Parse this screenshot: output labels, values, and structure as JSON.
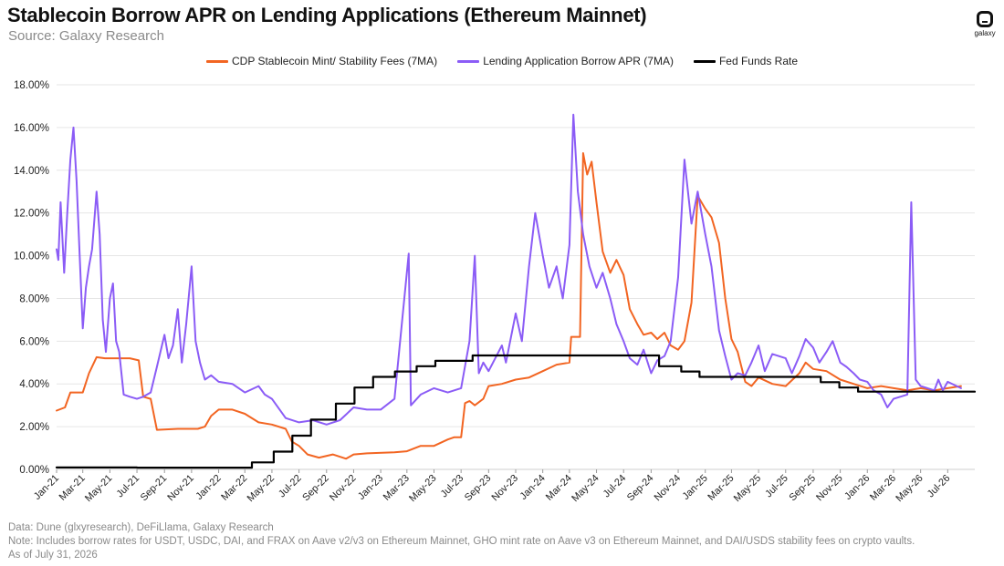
{
  "header": {
    "title": "Stablecoin Borrow APR on Lending Applications (Ethereum Mainnet)",
    "subtitle": "Source: Galaxy Research",
    "logo_text": "galaxy"
  },
  "footer": {
    "data_source": "Data: Dune (glxyresearch), DeFiLlama, Galaxy Research",
    "note": "Note: Includes borrow rates for USDT, USDC, DAI, and FRAX on Aave v2/v3 on Ethereum Mainnet, GHO mint rate on Aave v3 on Ethereum Mainnet, and DAI/USDS stability fees on crypto vaults.",
    "as_of": "As of July 31, 2026"
  },
  "colors": {
    "cdp": "#F26522",
    "lending": "#8B5CF6",
    "fed": "#000000",
    "grid": "#e6e6e6"
  },
  "chart_data": {
    "type": "line",
    "title": "Stablecoin Borrow APR on Lending Applications (Ethereum Mainnet)",
    "xlabel": "",
    "ylabel": "",
    "ylim": [
      0,
      18
    ],
    "ytick_values": [
      0,
      2,
      4,
      6,
      8,
      10,
      12,
      14,
      16,
      18
    ],
    "ytick_labels": [
      "0.00%",
      "2.00%",
      "4.00%",
      "6.00%",
      "8.00%",
      "10.00%",
      "12.00%",
      "14.00%",
      "16.00%",
      "18.00%"
    ],
    "x_start": "2021-01-01",
    "xlim": [
      "2021-01-01",
      "2026-08-31"
    ],
    "xtick_labels": [
      "Jan-21",
      "Mar-21",
      "May-21",
      "Jul-21",
      "Sep-21",
      "Nov-21",
      "Jan-22",
      "Mar-22",
      "May-22",
      "Jul-22",
      "Sep-22",
      "Nov-22",
      "Jan-23",
      "Mar-23",
      "May-23",
      "Jul-23",
      "Sep-23",
      "Nov-23",
      "Jan-24",
      "Mar-24",
      "May-24",
      "Jul-24",
      "Sep-24",
      "Nov-24",
      "Jan-25",
      "Mar-25",
      "May-25",
      "Jul-25",
      "Sep-25",
      "Nov-25",
      "Jan-26",
      "Mar-26",
      "May-26",
      "Jul-26"
    ],
    "grid": true,
    "legend_position": "top-center",
    "series": [
      {
        "name": "CDP Stablecoin Mint/ Stability Fees (7MA)",
        "color": "#F26522",
        "points": [
          [
            "2021-01-01",
            2.75
          ],
          [
            "2021-01-20",
            2.9
          ],
          [
            "2021-02-01",
            3.6
          ],
          [
            "2021-03-01",
            3.6
          ],
          [
            "2021-03-15",
            4.5
          ],
          [
            "2021-04-01",
            5.25
          ],
          [
            "2021-04-20",
            5.2
          ],
          [
            "2021-05-15",
            5.2
          ],
          [
            "2021-06-15",
            5.2
          ],
          [
            "2021-07-05",
            5.1
          ],
          [
            "2021-07-15",
            3.4
          ],
          [
            "2021-08-01",
            3.3
          ],
          [
            "2021-08-15",
            1.85
          ],
          [
            "2021-10-01",
            1.9
          ],
          [
            "2021-11-15",
            1.9
          ],
          [
            "2021-12-01",
            2.0
          ],
          [
            "2021-12-15",
            2.5
          ],
          [
            "2022-01-01",
            2.8
          ],
          [
            "2022-02-01",
            2.8
          ],
          [
            "2022-03-01",
            2.6
          ],
          [
            "2022-04-01",
            2.2
          ],
          [
            "2022-05-01",
            2.1
          ],
          [
            "2022-06-01",
            1.9
          ],
          [
            "2022-06-15",
            1.3
          ],
          [
            "2022-07-01",
            1.1
          ],
          [
            "2022-07-20",
            0.7
          ],
          [
            "2022-08-15",
            0.55
          ],
          [
            "2022-09-15",
            0.7
          ],
          [
            "2022-10-15",
            0.5
          ],
          [
            "2022-11-01",
            0.7
          ],
          [
            "2022-12-01",
            0.75
          ],
          [
            "2023-02-01",
            0.8
          ],
          [
            "2023-03-01",
            0.85
          ],
          [
            "2023-04-01",
            1.1
          ],
          [
            "2023-05-01",
            1.1
          ],
          [
            "2023-06-01",
            1.4
          ],
          [
            "2023-06-15",
            1.5
          ],
          [
            "2023-07-01",
            1.5
          ],
          [
            "2023-07-10",
            3.1
          ],
          [
            "2023-07-20",
            3.2
          ],
          [
            "2023-08-01",
            3.0
          ],
          [
            "2023-08-20",
            3.3
          ],
          [
            "2023-09-01",
            3.9
          ],
          [
            "2023-10-01",
            4.0
          ],
          [
            "2023-11-01",
            4.2
          ],
          [
            "2023-12-01",
            4.3
          ],
          [
            "2024-01-01",
            4.6
          ],
          [
            "2024-02-01",
            4.9
          ],
          [
            "2024-03-01",
            5.0
          ],
          [
            "2024-03-05",
            6.2
          ],
          [
            "2024-03-25",
            6.2
          ],
          [
            "2024-04-01",
            14.8
          ],
          [
            "2024-04-10",
            13.8
          ],
          [
            "2024-04-20",
            14.4
          ],
          [
            "2024-05-01",
            12.5
          ],
          [
            "2024-05-15",
            10.2
          ],
          [
            "2024-06-01",
            9.2
          ],
          [
            "2024-06-15",
            9.8
          ],
          [
            "2024-07-01",
            9.1
          ],
          [
            "2024-07-15",
            7.5
          ],
          [
            "2024-08-01",
            6.8
          ],
          [
            "2024-08-15",
            6.3
          ],
          [
            "2024-09-01",
            6.4
          ],
          [
            "2024-09-15",
            6.1
          ],
          [
            "2024-10-01",
            6.4
          ],
          [
            "2024-10-15",
            5.8
          ],
          [
            "2024-11-01",
            5.6
          ],
          [
            "2024-11-15",
            6.0
          ],
          [
            "2024-12-01",
            7.8
          ],
          [
            "2024-12-15",
            12.8
          ],
          [
            "2025-01-01",
            12.2
          ],
          [
            "2025-01-15",
            11.8
          ],
          [
            "2025-02-01",
            10.6
          ],
          [
            "2025-02-15",
            8.0
          ],
          [
            "2025-03-01",
            6.1
          ],
          [
            "2025-03-15",
            5.5
          ],
          [
            "2025-04-01",
            4.1
          ],
          [
            "2025-04-15",
            3.9
          ],
          [
            "2025-05-01",
            4.3
          ],
          [
            "2025-06-01",
            4.0
          ],
          [
            "2025-07-01",
            3.9
          ],
          [
            "2025-08-01",
            4.5
          ],
          [
            "2025-08-15",
            5.0
          ],
          [
            "2025-09-01",
            4.7
          ],
          [
            "2025-10-01",
            4.6
          ],
          [
            "2025-11-01",
            4.2
          ],
          [
            "2025-12-01",
            4.0
          ],
          [
            "2026-01-01",
            3.8
          ],
          [
            "2026-02-01",
            3.9
          ],
          [
            "2026-03-01",
            3.8
          ],
          [
            "2026-04-01",
            3.7
          ],
          [
            "2026-05-01",
            3.8
          ],
          [
            "2026-06-01",
            3.7
          ],
          [
            "2026-07-01",
            3.8
          ],
          [
            "2026-07-31",
            3.9
          ]
        ]
      },
      {
        "name": "Lending Application Borrow APR (7MA)",
        "color": "#8B5CF6",
        "points": [
          [
            "2021-01-01",
            10.3
          ],
          [
            "2021-01-05",
            9.8
          ],
          [
            "2021-01-10",
            12.5
          ],
          [
            "2021-01-18",
            9.2
          ],
          [
            "2021-01-25",
            12.0
          ],
          [
            "2021-02-01",
            14.5
          ],
          [
            "2021-02-08",
            16.0
          ],
          [
            "2021-02-15",
            13.5
          ],
          [
            "2021-02-22",
            10.0
          ],
          [
            "2021-03-01",
            6.6
          ],
          [
            "2021-03-08",
            8.5
          ],
          [
            "2021-03-15",
            9.5
          ],
          [
            "2021-03-22",
            10.3
          ],
          [
            "2021-04-01",
            13.0
          ],
          [
            "2021-04-08",
            11.0
          ],
          [
            "2021-04-15",
            7.0
          ],
          [
            "2021-04-22",
            5.5
          ],
          [
            "2021-05-01",
            8.0
          ],
          [
            "2021-05-08",
            8.7
          ],
          [
            "2021-05-15",
            6.0
          ],
          [
            "2021-05-22",
            5.5
          ],
          [
            "2021-06-01",
            3.5
          ],
          [
            "2021-06-15",
            3.4
          ],
          [
            "2021-07-01",
            3.3
          ],
          [
            "2021-07-15",
            3.4
          ],
          [
            "2021-08-01",
            3.6
          ],
          [
            "2021-08-15",
            4.8
          ],
          [
            "2021-09-01",
            6.3
          ],
          [
            "2021-09-10",
            5.2
          ],
          [
            "2021-09-20",
            5.8
          ],
          [
            "2021-10-01",
            7.5
          ],
          [
            "2021-10-10",
            5.0
          ],
          [
            "2021-10-20",
            6.8
          ],
          [
            "2021-11-01",
            9.5
          ],
          [
            "2021-11-10",
            6.0
          ],
          [
            "2021-11-20",
            5.0
          ],
          [
            "2021-12-01",
            4.2
          ],
          [
            "2021-12-15",
            4.4
          ],
          [
            "2022-01-01",
            4.1
          ],
          [
            "2022-02-01",
            4.0
          ],
          [
            "2022-03-01",
            3.6
          ],
          [
            "2022-04-01",
            3.9
          ],
          [
            "2022-04-15",
            3.5
          ],
          [
            "2022-05-01",
            3.3
          ],
          [
            "2022-06-01",
            2.4
          ],
          [
            "2022-07-01",
            2.2
          ],
          [
            "2022-08-01",
            2.3
          ],
          [
            "2022-09-01",
            2.1
          ],
          [
            "2022-10-01",
            2.3
          ],
          [
            "2022-11-01",
            2.9
          ],
          [
            "2022-12-01",
            2.8
          ],
          [
            "2023-01-01",
            2.8
          ],
          [
            "2023-02-01",
            3.3
          ],
          [
            "2023-03-05",
            10.1
          ],
          [
            "2023-03-10",
            3.0
          ],
          [
            "2023-04-01",
            3.5
          ],
          [
            "2023-05-01",
            3.8
          ],
          [
            "2023-06-01",
            3.6
          ],
          [
            "2023-07-01",
            3.8
          ],
          [
            "2023-07-20",
            6.0
          ],
          [
            "2023-08-01",
            10.0
          ],
          [
            "2023-08-10",
            4.5
          ],
          [
            "2023-08-20",
            5.0
          ],
          [
            "2023-09-01",
            4.6
          ],
          [
            "2023-10-01",
            5.8
          ],
          [
            "2023-10-10",
            5.0
          ],
          [
            "2023-11-01",
            7.3
          ],
          [
            "2023-11-15",
            6.0
          ],
          [
            "2023-12-01",
            9.5
          ],
          [
            "2023-12-15",
            12.0
          ],
          [
            "2024-01-01",
            10.0
          ],
          [
            "2024-01-15",
            8.5
          ],
          [
            "2024-02-01",
            9.5
          ],
          [
            "2024-02-15",
            8.0
          ],
          [
            "2024-03-01",
            10.5
          ],
          [
            "2024-03-10",
            16.6
          ],
          [
            "2024-03-20",
            13.0
          ],
          [
            "2024-04-01",
            11.0
          ],
          [
            "2024-04-15",
            9.5
          ],
          [
            "2024-05-01",
            8.5
          ],
          [
            "2024-05-15",
            9.2
          ],
          [
            "2024-06-01",
            8.0
          ],
          [
            "2024-06-15",
            6.8
          ],
          [
            "2024-07-01",
            6.0
          ],
          [
            "2024-07-15",
            5.2
          ],
          [
            "2024-08-01",
            4.9
          ],
          [
            "2024-08-15",
            5.6
          ],
          [
            "2024-09-01",
            4.5
          ],
          [
            "2024-09-15",
            5.1
          ],
          [
            "2024-10-01",
            5.3
          ],
          [
            "2024-10-15",
            6.0
          ],
          [
            "2024-11-01",
            9.0
          ],
          [
            "2024-11-15",
            14.5
          ],
          [
            "2024-12-01",
            11.5
          ],
          [
            "2024-12-15",
            13.0
          ],
          [
            "2025-01-01",
            11.0
          ],
          [
            "2025-01-15",
            9.5
          ],
          [
            "2025-02-01",
            6.5
          ],
          [
            "2025-02-15",
            5.3
          ],
          [
            "2025-03-01",
            4.2
          ],
          [
            "2025-03-15",
            4.5
          ],
          [
            "2025-04-01",
            4.4
          ],
          [
            "2025-04-15",
            5.0
          ],
          [
            "2025-05-01",
            5.8
          ],
          [
            "2025-05-15",
            4.6
          ],
          [
            "2025-06-01",
            5.4
          ],
          [
            "2025-07-01",
            5.2
          ],
          [
            "2025-07-15",
            4.5
          ],
          [
            "2025-08-01",
            5.3
          ],
          [
            "2025-08-15",
            6.1
          ],
          [
            "2025-09-01",
            5.7
          ],
          [
            "2025-09-15",
            5.0
          ],
          [
            "2025-10-01",
            5.5
          ],
          [
            "2025-10-15",
            6.0
          ],
          [
            "2025-11-01",
            5.0
          ],
          [
            "2025-11-15",
            4.8
          ],
          [
            "2025-12-01",
            4.5
          ],
          [
            "2025-12-15",
            4.2
          ],
          [
            "2026-01-01",
            4.1
          ],
          [
            "2026-01-15",
            3.7
          ],
          [
            "2026-02-01",
            3.5
          ],
          [
            "2026-02-15",
            2.9
          ],
          [
            "2026-03-01",
            3.3
          ],
          [
            "2026-04-01",
            3.5
          ],
          [
            "2026-04-10",
            12.5
          ],
          [
            "2026-04-20",
            4.2
          ],
          [
            "2026-05-01",
            3.9
          ],
          [
            "2026-06-01",
            3.7
          ],
          [
            "2026-06-10",
            4.2
          ],
          [
            "2026-06-20",
            3.7
          ],
          [
            "2026-07-01",
            4.1
          ],
          [
            "2026-07-31",
            3.8
          ]
        ]
      },
      {
        "name": "Fed Funds Rate",
        "color": "#000000",
        "step": true,
        "points": [
          [
            "2021-01-01",
            0.09
          ],
          [
            "2021-07-01",
            0.08
          ],
          [
            "2022-03-17",
            0.33
          ],
          [
            "2022-05-05",
            0.83
          ],
          [
            "2022-06-16",
            1.58
          ],
          [
            "2022-07-28",
            2.33
          ],
          [
            "2022-09-22",
            3.08
          ],
          [
            "2022-11-03",
            3.83
          ],
          [
            "2022-12-15",
            4.33
          ],
          [
            "2023-02-02",
            4.58
          ],
          [
            "2023-03-23",
            4.83
          ],
          [
            "2023-05-04",
            5.08
          ],
          [
            "2023-07-27",
            5.33
          ],
          [
            "2024-09-19",
            4.83
          ],
          [
            "2024-11-08",
            4.58
          ],
          [
            "2024-12-19",
            4.33
          ],
          [
            "2025-09-18",
            4.08
          ],
          [
            "2025-10-30",
            3.83
          ],
          [
            "2025-12-11",
            3.64
          ],
          [
            "2026-07-31",
            3.64
          ]
        ]
      }
    ]
  }
}
